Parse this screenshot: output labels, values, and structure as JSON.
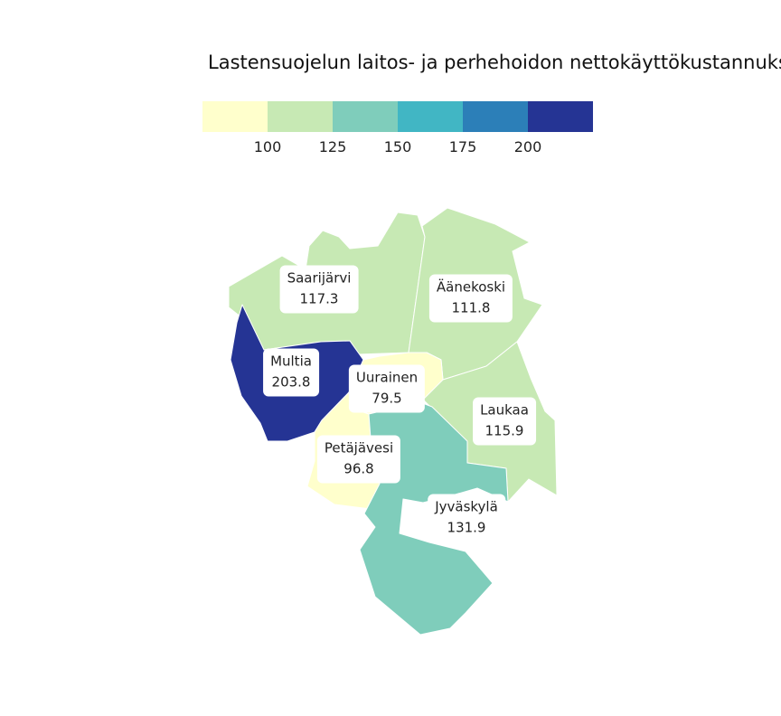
{
  "title": "Lastensuojelun laitos- ja perhehoidon nettokäyttökustannukset",
  "legend": {
    "colors": [
      "#ffffcc",
      "#c7e9b4",
      "#7fcdbb",
      "#41b6c4",
      "#2c7fb8",
      "#253494"
    ],
    "breaks": [
      75,
      100,
      125,
      150,
      175,
      200,
      225
    ],
    "tick_labels": [
      "100",
      "125",
      "150",
      "175",
      "200"
    ]
  },
  "chart_data": {
    "type": "choropleth",
    "title": "Lastensuojelun laitos- ja perhehoidon nettokäyttökustannukset",
    "color_scale": {
      "breaks": [
        75,
        100,
        125,
        150,
        175,
        200,
        225
      ],
      "colors": [
        "#ffffcc",
        "#c7e9b4",
        "#7fcdbb",
        "#41b6c4",
        "#2c7fb8",
        "#253494"
      ]
    },
    "regions": [
      {
        "name": "Saarijärvi",
        "value": 117.3,
        "value_label": "117.3"
      },
      {
        "name": "Äänekoski",
        "value": 111.8,
        "value_label": "111.8"
      },
      {
        "name": "Multia",
        "value": 203.8,
        "value_label": "203.8"
      },
      {
        "name": "Uurainen",
        "value": 79.5,
        "value_label": "79.5"
      },
      {
        "name": "Laukaa",
        "value": 115.9,
        "value_label": "115.9"
      },
      {
        "name": "Petäjävesi",
        "value": 96.8,
        "value_label": "96.8"
      },
      {
        "name": "Jyväskylä",
        "value": 131.9,
        "value_label": "131.9"
      }
    ]
  }
}
